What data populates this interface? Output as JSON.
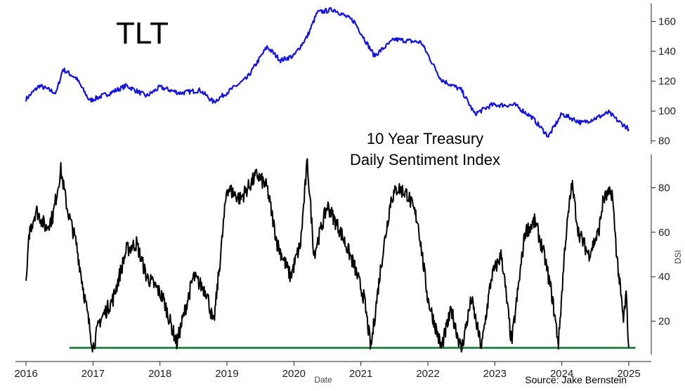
{
  "colors": {
    "tlt_line": "#1515e0",
    "dsi_line": "#000000",
    "threshold_line": "#2e8b4a",
    "axis": "#222222"
  },
  "chart_data": [
    {
      "type": "line",
      "panel": "top",
      "title": "TLT",
      "ylabel": "",
      "ylim": [
        78,
        172
      ],
      "yticks": [
        80,
        100,
        120,
        140,
        160
      ],
      "grid": false,
      "series": [
        {
          "name": "TLT",
          "x": [
            2016.0,
            2016.2,
            2016.45,
            2016.55,
            2016.75,
            2016.95,
            2017.25,
            2017.5,
            2017.8,
            2018.0,
            2018.3,
            2018.6,
            2018.8,
            2019.05,
            2019.3,
            2019.6,
            2019.8,
            2020.0,
            2020.2,
            2020.35,
            2020.6,
            2020.9,
            2021.2,
            2021.5,
            2021.9,
            2022.2,
            2022.5,
            2022.7,
            2022.95,
            2023.3,
            2023.55,
            2023.8,
            2024.0,
            2024.3,
            2024.55,
            2024.7,
            2024.85,
            2025.0
          ],
          "y": [
            108,
            117,
            112,
            128,
            122,
            107,
            112,
            117,
            110,
            116,
            112,
            114,
            106,
            114,
            122,
            143,
            134,
            137,
            150,
            166,
            168,
            160,
            137,
            148,
            146,
            121,
            114,
            98,
            104,
            104,
            96,
            83,
            98,
            92,
            96,
            99,
            93,
            88
          ]
        }
      ]
    },
    {
      "type": "line",
      "panel": "bottom",
      "title": "10 Year Treasury\nDaily Sentiment Index",
      "title_lines": [
        "10 Year Treasury",
        "Daily Sentiment Index"
      ],
      "xlabel": "Date",
      "ylabel": "DSI",
      "ylim": [
        5,
        95
      ],
      "yticks": [
        20,
        40,
        60,
        80
      ],
      "xticks": [
        2016,
        2017,
        2018,
        2019,
        2020,
        2021,
        2022,
        2023,
        2024,
        2025
      ],
      "xlim": [
        2015.97,
        2025.12
      ],
      "grid": false,
      "threshold": {
        "value": 8,
        "x_start": 2016.65,
        "x_end": 2025.1
      },
      "source": "Source: Jake Bernstein",
      "series": [
        {
          "name": "DSI",
          "x": [
            2016.0,
            2016.05,
            2016.15,
            2016.3,
            2016.4,
            2016.52,
            2016.62,
            2016.75,
            2016.88,
            2017.0,
            2017.1,
            2017.3,
            2017.5,
            2017.65,
            2017.8,
            2017.95,
            2018.05,
            2018.25,
            2018.5,
            2018.7,
            2018.8,
            2018.9,
            2019.0,
            2019.2,
            2019.45,
            2019.6,
            2019.75,
            2019.95,
            2020.1,
            2020.2,
            2020.3,
            2020.5,
            2020.7,
            2020.9,
            2021.05,
            2021.15,
            2021.3,
            2021.45,
            2021.55,
            2021.7,
            2021.85,
            2022.0,
            2022.2,
            2022.35,
            2022.5,
            2022.65,
            2022.8,
            2022.95,
            2023.1,
            2023.25,
            2023.45,
            2023.6,
            2023.75,
            2023.85,
            2023.95,
            2024.05,
            2024.15,
            2024.25,
            2024.4,
            2024.55,
            2024.62,
            2024.75,
            2024.82,
            2024.92,
            2024.96,
            2025.0
          ],
          "y": [
            35,
            60,
            70,
            62,
            67,
            88,
            70,
            55,
            30,
            8,
            20,
            30,
            52,
            55,
            40,
            35,
            30,
            10,
            40,
            33,
            18,
            48,
            80,
            75,
            86,
            80,
            55,
            40,
            55,
            92,
            50,
            72,
            60,
            45,
            30,
            8,
            45,
            75,
            80,
            77,
            65,
            30,
            8,
            25,
            7,
            30,
            8,
            40,
            50,
            10,
            60,
            65,
            48,
            32,
            10,
            55,
            82,
            60,
            50,
            60,
            75,
            78,
            50,
            20,
            32,
            8
          ]
        }
      ]
    }
  ]
}
